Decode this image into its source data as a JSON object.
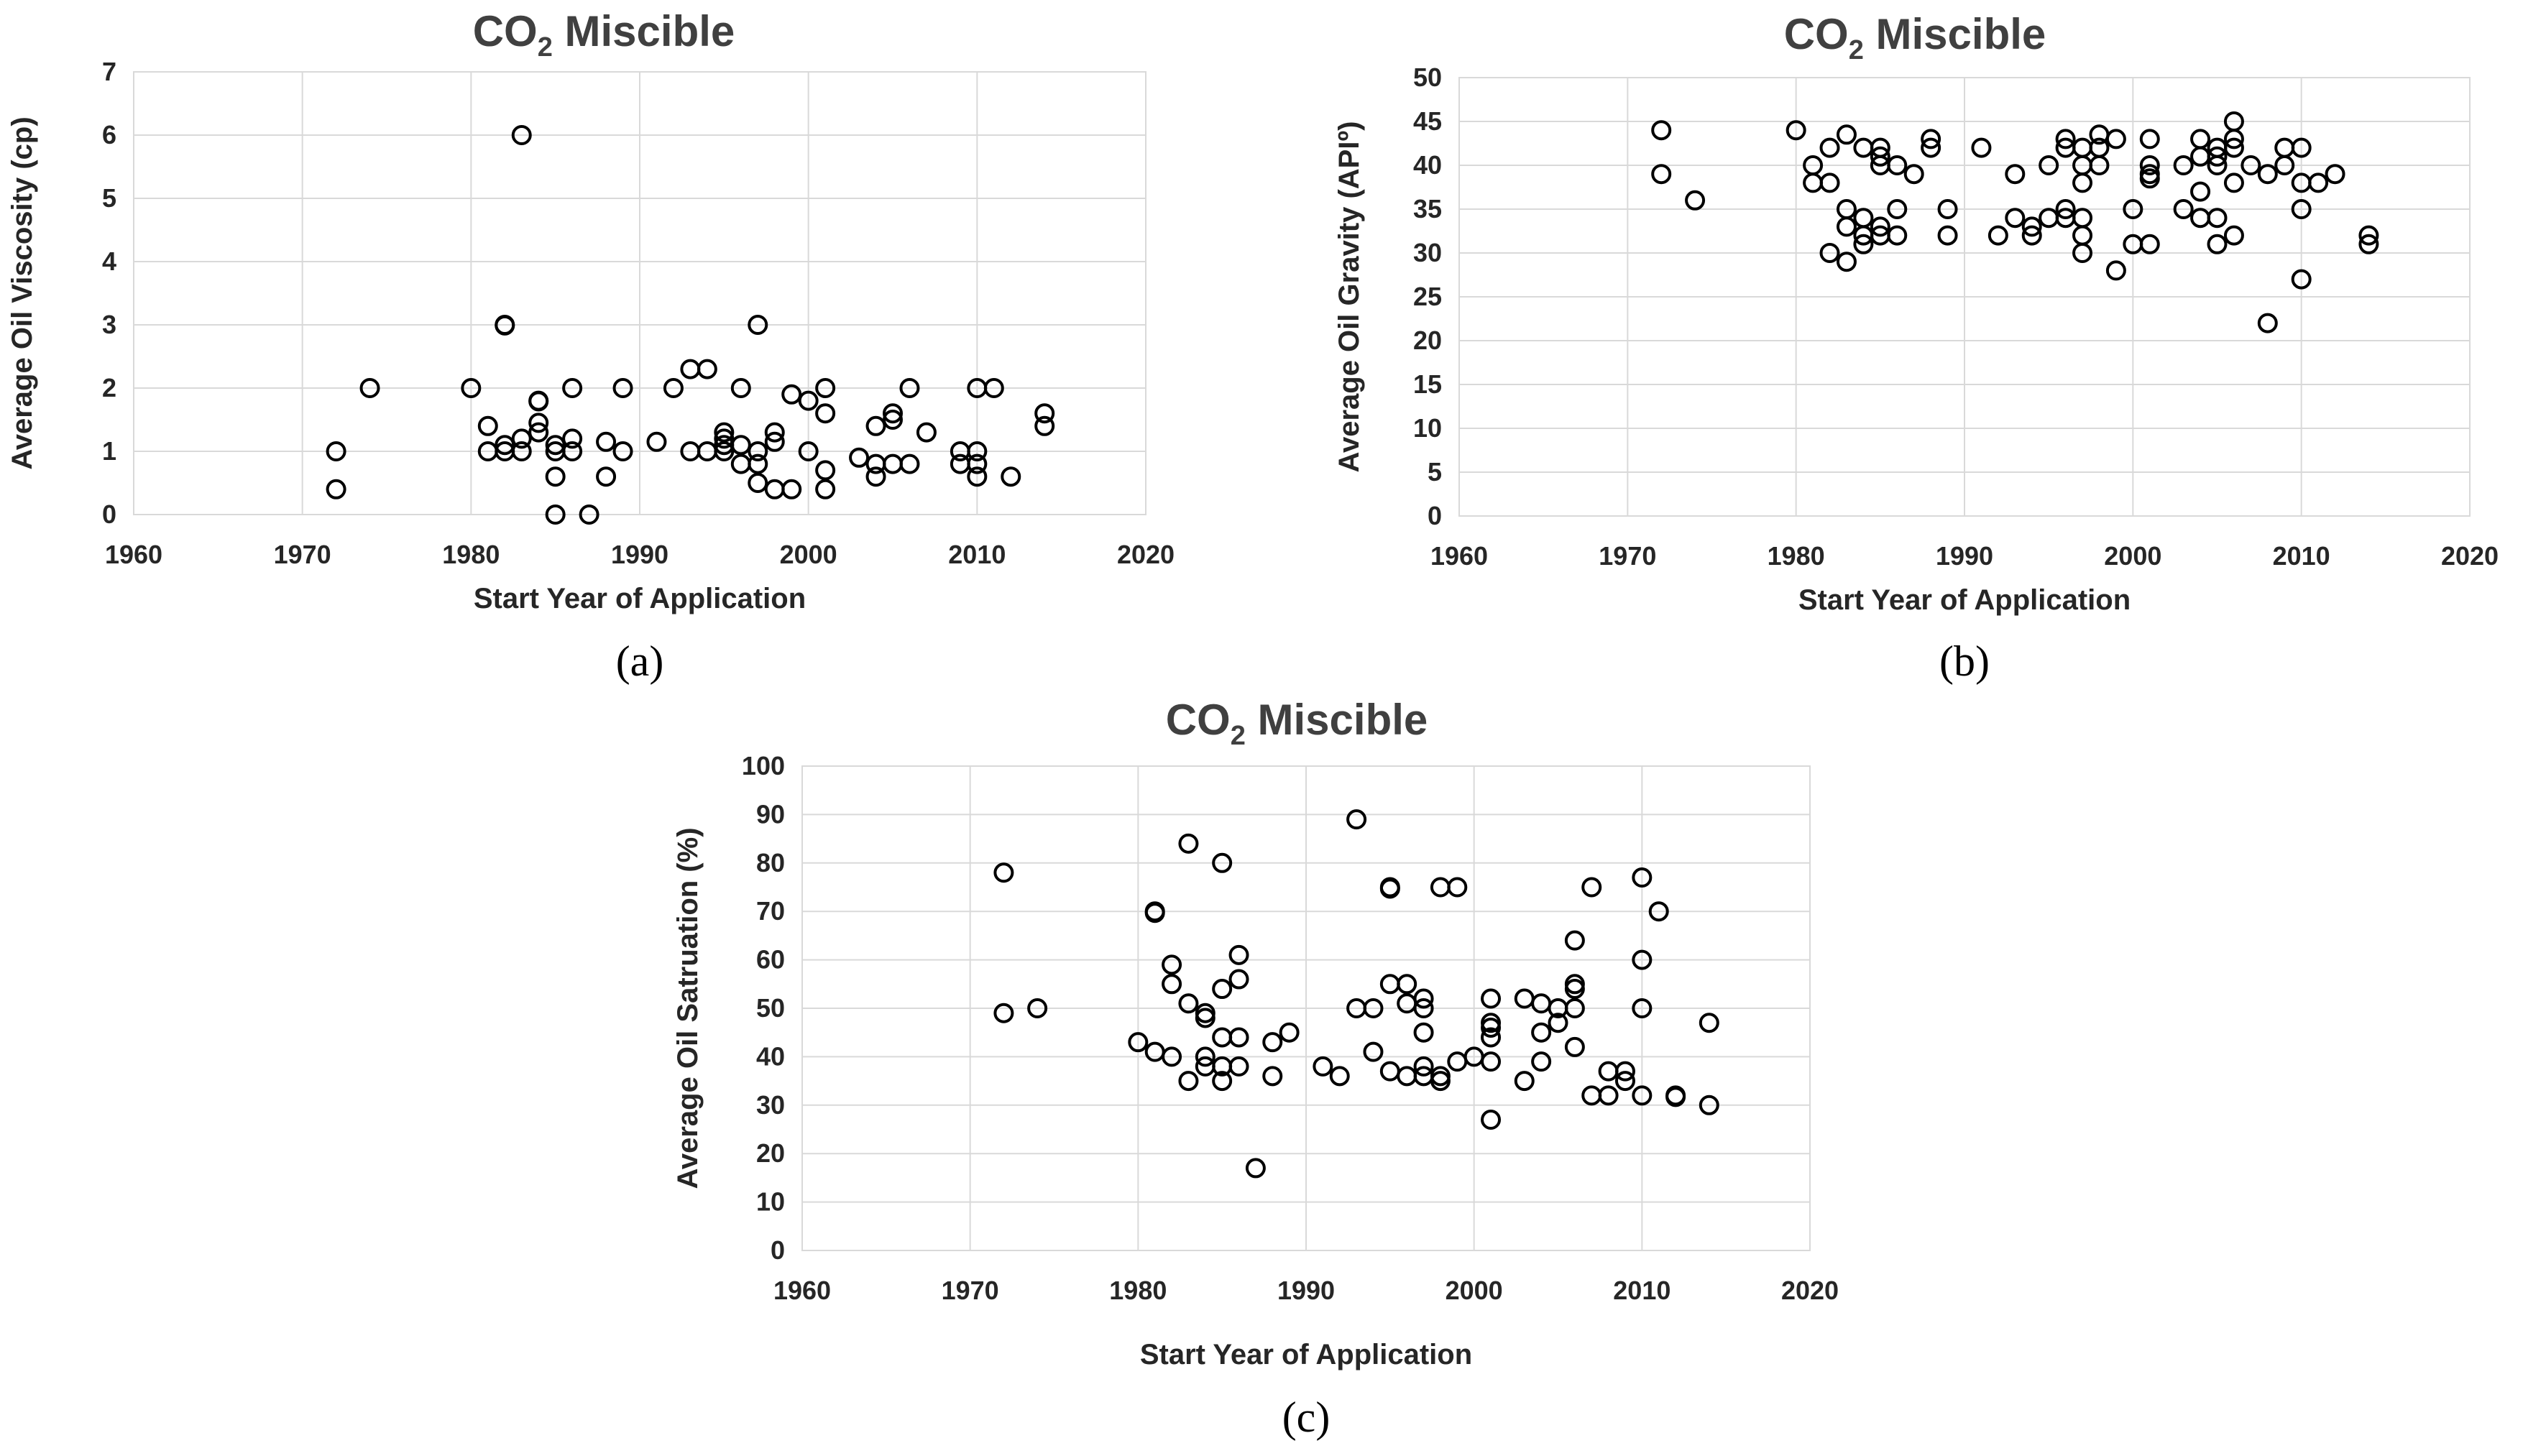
{
  "chart_data": [
    {
      "type": "scatter",
      "title": "CO",
      "title_subscript": "2",
      "title_rest": " Miscible",
      "xlabel": "Start Year of Application",
      "ylabel": "Average Oil Viscosity (cp)",
      "caption": "(a)",
      "xlim": [
        1960,
        2020
      ],
      "ylim": [
        0,
        7
      ],
      "xticks": [
        "1960",
        "1970",
        "1980",
        "1990",
        "2000",
        "2010",
        "2020"
      ],
      "yticks": [
        "0",
        "1",
        "2",
        "3",
        "4",
        "5",
        "6",
        "7"
      ],
      "points": [
        [
          1972,
          1.0
        ],
        [
          1972,
          0.4
        ],
        [
          1974,
          2.0
        ],
        [
          1980,
          2.0
        ],
        [
          1981,
          1.4
        ],
        [
          1981,
          1.0
        ],
        [
          1982,
          3.0
        ],
        [
          1982,
          2.99
        ],
        [
          1982,
          1.1
        ],
        [
          1982,
          1.0
        ],
        [
          1983,
          6.0
        ],
        [
          1983,
          1.2
        ],
        [
          1983,
          1.0
        ],
        [
          1984,
          1.8
        ],
        [
          1984,
          1.79
        ],
        [
          1984,
          1.45
        ],
        [
          1984,
          1.3
        ],
        [
          1985,
          1.1
        ],
        [
          1985,
          1.0
        ],
        [
          1985,
          0.6
        ],
        [
          1985,
          0.0
        ],
        [
          1986,
          2.0
        ],
        [
          1986,
          1.2
        ],
        [
          1986,
          1.0
        ],
        [
          1987,
          0.0
        ],
        [
          1988,
          1.15
        ],
        [
          1988,
          0.6
        ],
        [
          1989,
          2.0
        ],
        [
          1989,
          1.0
        ],
        [
          1991,
          1.15
        ],
        [
          1992,
          2.0
        ],
        [
          1993,
          2.3
        ],
        [
          1993,
          1.0
        ],
        [
          1994,
          2.3
        ],
        [
          1994,
          1.0
        ],
        [
          1995,
          1.3
        ],
        [
          1995,
          1.2
        ],
        [
          1995,
          1.1
        ],
        [
          1995,
          1.0
        ],
        [
          1996,
          2.0
        ],
        [
          1996,
          1.1
        ],
        [
          1996,
          0.8
        ],
        [
          1997,
          3.0
        ],
        [
          1997,
          1.0
        ],
        [
          1997,
          0.8
        ],
        [
          1997,
          0.5
        ],
        [
          1998,
          1.3
        ],
        [
          1998,
          1.15
        ],
        [
          1998,
          0.4
        ],
        [
          1999,
          1.9
        ],
        [
          1999,
          0.4
        ],
        [
          2000,
          1.8
        ],
        [
          2000,
          1.0
        ],
        [
          2001,
          2.0
        ],
        [
          2001,
          1.6
        ],
        [
          2001,
          0.7
        ],
        [
          2001,
          0.4
        ],
        [
          2003,
          0.9
        ],
        [
          2004,
          1.4
        ],
        [
          2004,
          0.8
        ],
        [
          2004,
          0.6
        ],
        [
          2005,
          1.6
        ],
        [
          2005,
          1.5
        ],
        [
          2005,
          0.8
        ],
        [
          2006,
          2.0
        ],
        [
          2006,
          0.8
        ],
        [
          2007,
          1.3
        ],
        [
          2009,
          1.0
        ],
        [
          2009,
          0.8
        ],
        [
          2010,
          2.0
        ],
        [
          2010,
          1.0
        ],
        [
          2010,
          0.8
        ],
        [
          2010,
          0.6
        ],
        [
          2011,
          2.0
        ],
        [
          2012,
          0.6
        ],
        [
          2014,
          1.6
        ],
        [
          2014,
          1.4
        ]
      ]
    },
    {
      "type": "scatter",
      "title": "CO",
      "title_subscript": "2",
      "title_rest": " Miscible",
      "xlabel": "Start Year of Application",
      "ylabel": "Average Oil Gravity (APIº)",
      "caption": "(b)",
      "xlim": [
        1960,
        2020
      ],
      "ylim": [
        0,
        50
      ],
      "xticks": [
        "1960",
        "1970",
        "1980",
        "1990",
        "2000",
        "2010",
        "2020"
      ],
      "yticks": [
        "0",
        "5",
        "10",
        "15",
        "20",
        "25",
        "30",
        "35",
        "40",
        "45",
        "50"
      ],
      "points": [
        [
          1972,
          44
        ],
        [
          1972,
          39
        ],
        [
          1974,
          36
        ],
        [
          1980,
          44
        ],
        [
          1981,
          40
        ],
        [
          1981,
          38
        ],
        [
          1982,
          42
        ],
        [
          1982,
          38
        ],
        [
          1982,
          30
        ],
        [
          1983,
          43.5
        ],
        [
          1983,
          35
        ],
        [
          1983,
          33
        ],
        [
          1983,
          29
        ],
        [
          1984,
          42
        ],
        [
          1984,
          34
        ],
        [
          1984,
          32
        ],
        [
          1984,
          31
        ],
        [
          1985,
          42
        ],
        [
          1985,
          41
        ],
        [
          1985,
          40
        ],
        [
          1985,
          33
        ],
        [
          1985,
          32
        ],
        [
          1986,
          40
        ],
        [
          1986,
          35
        ],
        [
          1986,
          32
        ],
        [
          1987,
          39
        ],
        [
          1988,
          43
        ],
        [
          1988,
          42
        ],
        [
          1989,
          35
        ],
        [
          1989,
          32
        ],
        [
          1991,
          42
        ],
        [
          1992,
          32
        ],
        [
          1993,
          39
        ],
        [
          1993,
          34
        ],
        [
          1994,
          33
        ],
        [
          1994,
          32
        ],
        [
          1995,
          40
        ],
        [
          1995,
          34
        ],
        [
          1996,
          43
        ],
        [
          1996,
          42
        ],
        [
          1996,
          35
        ],
        [
          1996,
          34
        ],
        [
          1997,
          42
        ],
        [
          1997,
          40
        ],
        [
          1997,
          38
        ],
        [
          1997,
          34
        ],
        [
          1997,
          32
        ],
        [
          1997,
          30
        ],
        [
          1998,
          43.5
        ],
        [
          1998,
          42
        ],
        [
          1998,
          40
        ],
        [
          1999,
          43
        ],
        [
          1999,
          28
        ],
        [
          2000,
          35
        ],
        [
          2000,
          31
        ],
        [
          2001,
          43
        ],
        [
          2001,
          40
        ],
        [
          2001,
          39
        ],
        [
          2001,
          38.5
        ],
        [
          2001,
          31
        ],
        [
          2003,
          40
        ],
        [
          2003,
          35
        ],
        [
          2004,
          43
        ],
        [
          2004,
          41
        ],
        [
          2004,
          37
        ],
        [
          2004,
          34
        ],
        [
          2005,
          42
        ],
        [
          2005,
          41
        ],
        [
          2005,
          40
        ],
        [
          2005,
          34
        ],
        [
          2005,
          31
        ],
        [
          2006,
          45
        ],
        [
          2006,
          43
        ],
        [
          2006,
          42
        ],
        [
          2006,
          38
        ],
        [
          2006,
          32
        ],
        [
          2007,
          40
        ],
        [
          2008,
          39
        ],
        [
          2008,
          22
        ],
        [
          2009,
          42
        ],
        [
          2009,
          40
        ],
        [
          2010,
          42
        ],
        [
          2010,
          38
        ],
        [
          2010,
          35
        ],
        [
          2010,
          27
        ],
        [
          2011,
          38
        ],
        [
          2012,
          39
        ],
        [
          2014,
          32
        ],
        [
          2014,
          31
        ]
      ]
    },
    {
      "type": "scatter",
      "title": "CO",
      "title_subscript": "2",
      "title_rest": " Miscible",
      "xlabel": "Start Year of Application",
      "ylabel": "Average Oil Satruation (%)",
      "caption": "(c)",
      "xlim": [
        1960,
        2020
      ],
      "ylim": [
        0,
        100
      ],
      "xticks": [
        "1960",
        "1970",
        "1980",
        "1990",
        "2000",
        "2010",
        "2020"
      ],
      "yticks": [
        "0",
        "10",
        "20",
        "30",
        "40",
        "50",
        "60",
        "70",
        "80",
        "90",
        "100"
      ],
      "points": [
        [
          1972,
          78
        ],
        [
          1972,
          49
        ],
        [
          1974,
          50
        ],
        [
          1980,
          43
        ],
        [
          1981,
          70
        ],
        [
          1981,
          69.7
        ],
        [
          1981,
          41
        ],
        [
          1982,
          59
        ],
        [
          1982,
          55
        ],
        [
          1982,
          40
        ],
        [
          1983,
          84
        ],
        [
          1983,
          51
        ],
        [
          1983,
          35
        ],
        [
          1984,
          49
        ],
        [
          1984,
          48
        ],
        [
          1984,
          40
        ],
        [
          1984,
          38
        ],
        [
          1985,
          80
        ],
        [
          1985,
          54
        ],
        [
          1985,
          44
        ],
        [
          1985,
          38
        ],
        [
          1985,
          35
        ],
        [
          1986,
          61
        ],
        [
          1986,
          56
        ],
        [
          1986,
          44
        ],
        [
          1986,
          38
        ],
        [
          1987,
          17
        ],
        [
          1988,
          43
        ],
        [
          1988,
          36
        ],
        [
          1989,
          45
        ],
        [
          1991,
          38
        ],
        [
          1992,
          36
        ],
        [
          1993,
          89
        ],
        [
          1993,
          50
        ],
        [
          1994,
          50
        ],
        [
          1994,
          41
        ],
        [
          1995,
          75
        ],
        [
          1995,
          74.7
        ],
        [
          1995,
          55
        ],
        [
          1995,
          37
        ],
        [
          1996,
          55
        ],
        [
          1996,
          51
        ],
        [
          1996,
          36
        ],
        [
          1997,
          52
        ],
        [
          1997,
          50
        ],
        [
          1997,
          45
        ],
        [
          1997,
          38
        ],
        [
          1997,
          36
        ],
        [
          1998,
          75
        ],
        [
          1998,
          36
        ],
        [
          1998,
          35
        ],
        [
          1999,
          75
        ],
        [
          1999,
          39
        ],
        [
          2000,
          40
        ],
        [
          2001,
          52
        ],
        [
          2001,
          47
        ],
        [
          2001,
          46
        ],
        [
          2001,
          44
        ],
        [
          2001,
          39
        ],
        [
          2001,
          27
        ],
        [
          2003,
          52
        ],
        [
          2003,
          35
        ],
        [
          2004,
          51
        ],
        [
          2004,
          45
        ],
        [
          2004,
          39
        ],
        [
          2005,
          50
        ],
        [
          2005,
          47
        ],
        [
          2006,
          64
        ],
        [
          2006,
          55
        ],
        [
          2006,
          54
        ],
        [
          2006,
          50
        ],
        [
          2006,
          42
        ],
        [
          2007,
          75
        ],
        [
          2007,
          32
        ],
        [
          2008,
          37
        ],
        [
          2008,
          32
        ],
        [
          2009,
          37
        ],
        [
          2009,
          35
        ],
        [
          2010,
          77
        ],
        [
          2010,
          60
        ],
        [
          2010,
          50
        ],
        [
          2010,
          32
        ],
        [
          2011,
          70
        ],
        [
          2012,
          32
        ],
        [
          2012,
          31.7
        ],
        [
          2014,
          47
        ],
        [
          2014,
          30
        ]
      ]
    }
  ]
}
